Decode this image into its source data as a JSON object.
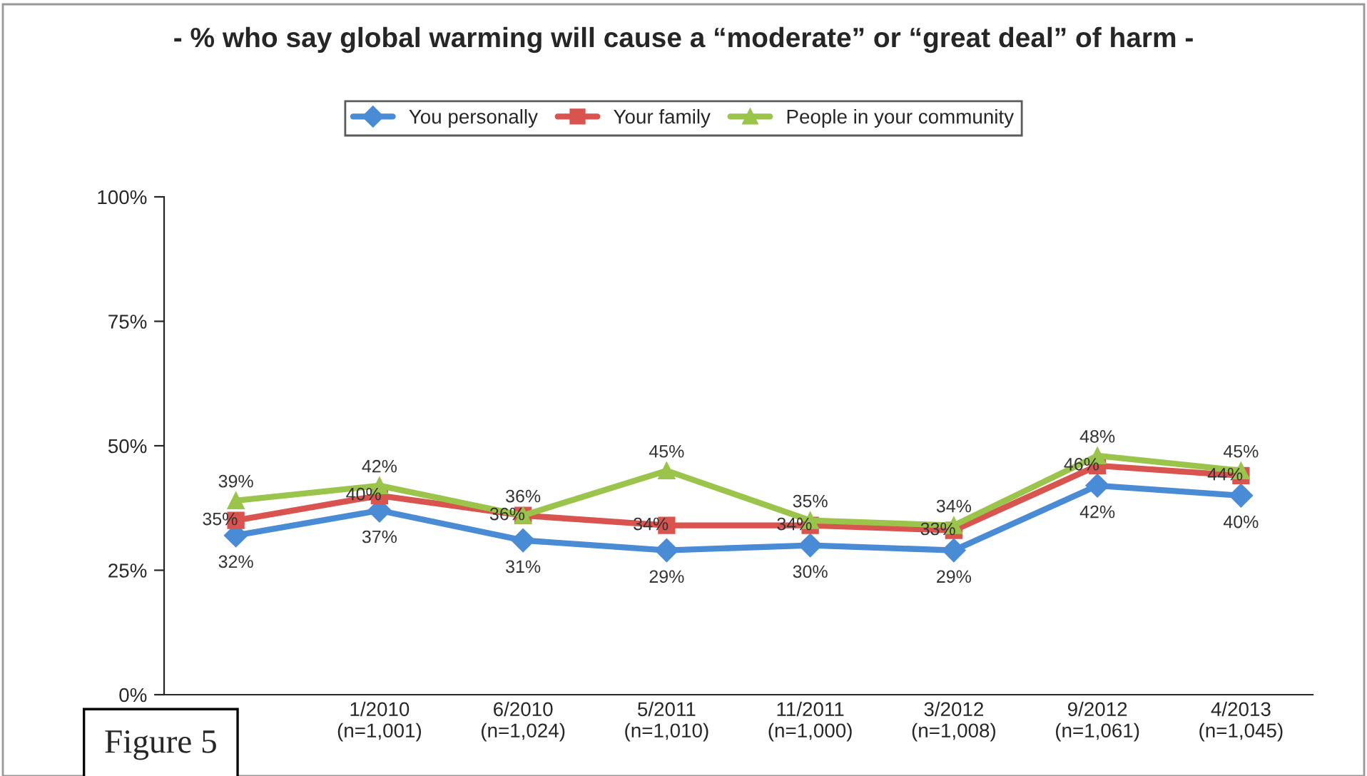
{
  "chart_data": {
    "type": "line",
    "title": "- % who say global warming will cause a “moderate” or “great deal” of harm -",
    "categories": [
      null,
      "1/2010\n(n=1,001)",
      "6/2010\n(n=1,024)",
      "5/2011\n(n=1,010)",
      "11/2011\n(n=1,000)",
      "3/2012\n(n=1,008)",
      "9/2012\n(n=1,061)",
      "4/2013\n(n=1,045)"
    ],
    "series": [
      {
        "name": "You personally",
        "color": "#4a8bd6",
        "marker": "diamond",
        "values": [
          32,
          37,
          31,
          29,
          30,
          29,
          42,
          40
        ],
        "value_labels": [
          "32%",
          "37%",
          "31%",
          "29%",
          "30%",
          "29%",
          "42%",
          "40%"
        ]
      },
      {
        "name": "Your family",
        "color": "#d9534f",
        "marker": "square",
        "values": [
          35,
          40,
          36,
          34,
          34,
          33,
          46,
          44
        ],
        "value_labels": [
          "35%",
          "40%",
          "36%",
          "34%",
          "34%",
          "33%",
          "46%",
          "44%"
        ]
      },
      {
        "name": "People in your community",
        "color": "#9bc44a",
        "marker": "triangle",
        "values": [
          39,
          42,
          36,
          45,
          35,
          34,
          48,
          45
        ],
        "value_labels": [
          "39%",
          "42%",
          "36%",
          "45%",
          "35%",
          "34%",
          "48%",
          "45%"
        ]
      }
    ],
    "ylim": [
      0,
      100
    ],
    "yticks": [
      {
        "value": 0,
        "label": "0%"
      },
      {
        "value": 25,
        "label": "25%"
      },
      {
        "value": 50,
        "label": "50%"
      },
      {
        "value": 75,
        "label": "75%"
      },
      {
        "value": 100,
        "label": "100%"
      }
    ],
    "legend": "top",
    "grid": false,
    "annotations": [
      "Figure 5"
    ]
  }
}
